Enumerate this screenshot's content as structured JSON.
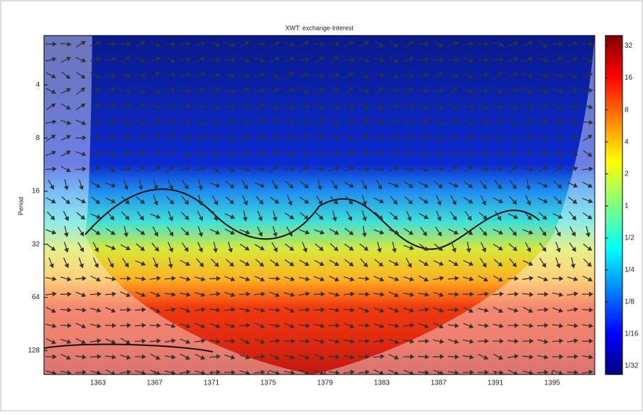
{
  "chart_data": {
    "type": "wavelet",
    "title": "XWT: exchange-Interest",
    "ylabel": "Period",
    "xlim": [
      1359.2,
      1398
    ],
    "xticks": [
      1363,
      1367,
      1371,
      1375,
      1379,
      1383,
      1387,
      1391,
      1395
    ],
    "ylim": [
      2.1,
      175
    ],
    "yticks": [
      4,
      8,
      16,
      32,
      64,
      128
    ],
    "ylog": true,
    "yreversed": true,
    "colorbar": {
      "lim": [
        0.026,
        40
      ],
      "log": true,
      "ticks": [
        32,
        16,
        8,
        4,
        2,
        1,
        {
          "value": 0.5,
          "label": "1/2"
        },
        {
          "value": 0.25,
          "label": "1/4"
        },
        {
          "value": 0.125,
          "label": "1/8"
        },
        {
          "value": 0.0625,
          "label": "1/16"
        },
        {
          "value": 0.03125,
          "label": "1/32"
        }
      ]
    }
  }
}
